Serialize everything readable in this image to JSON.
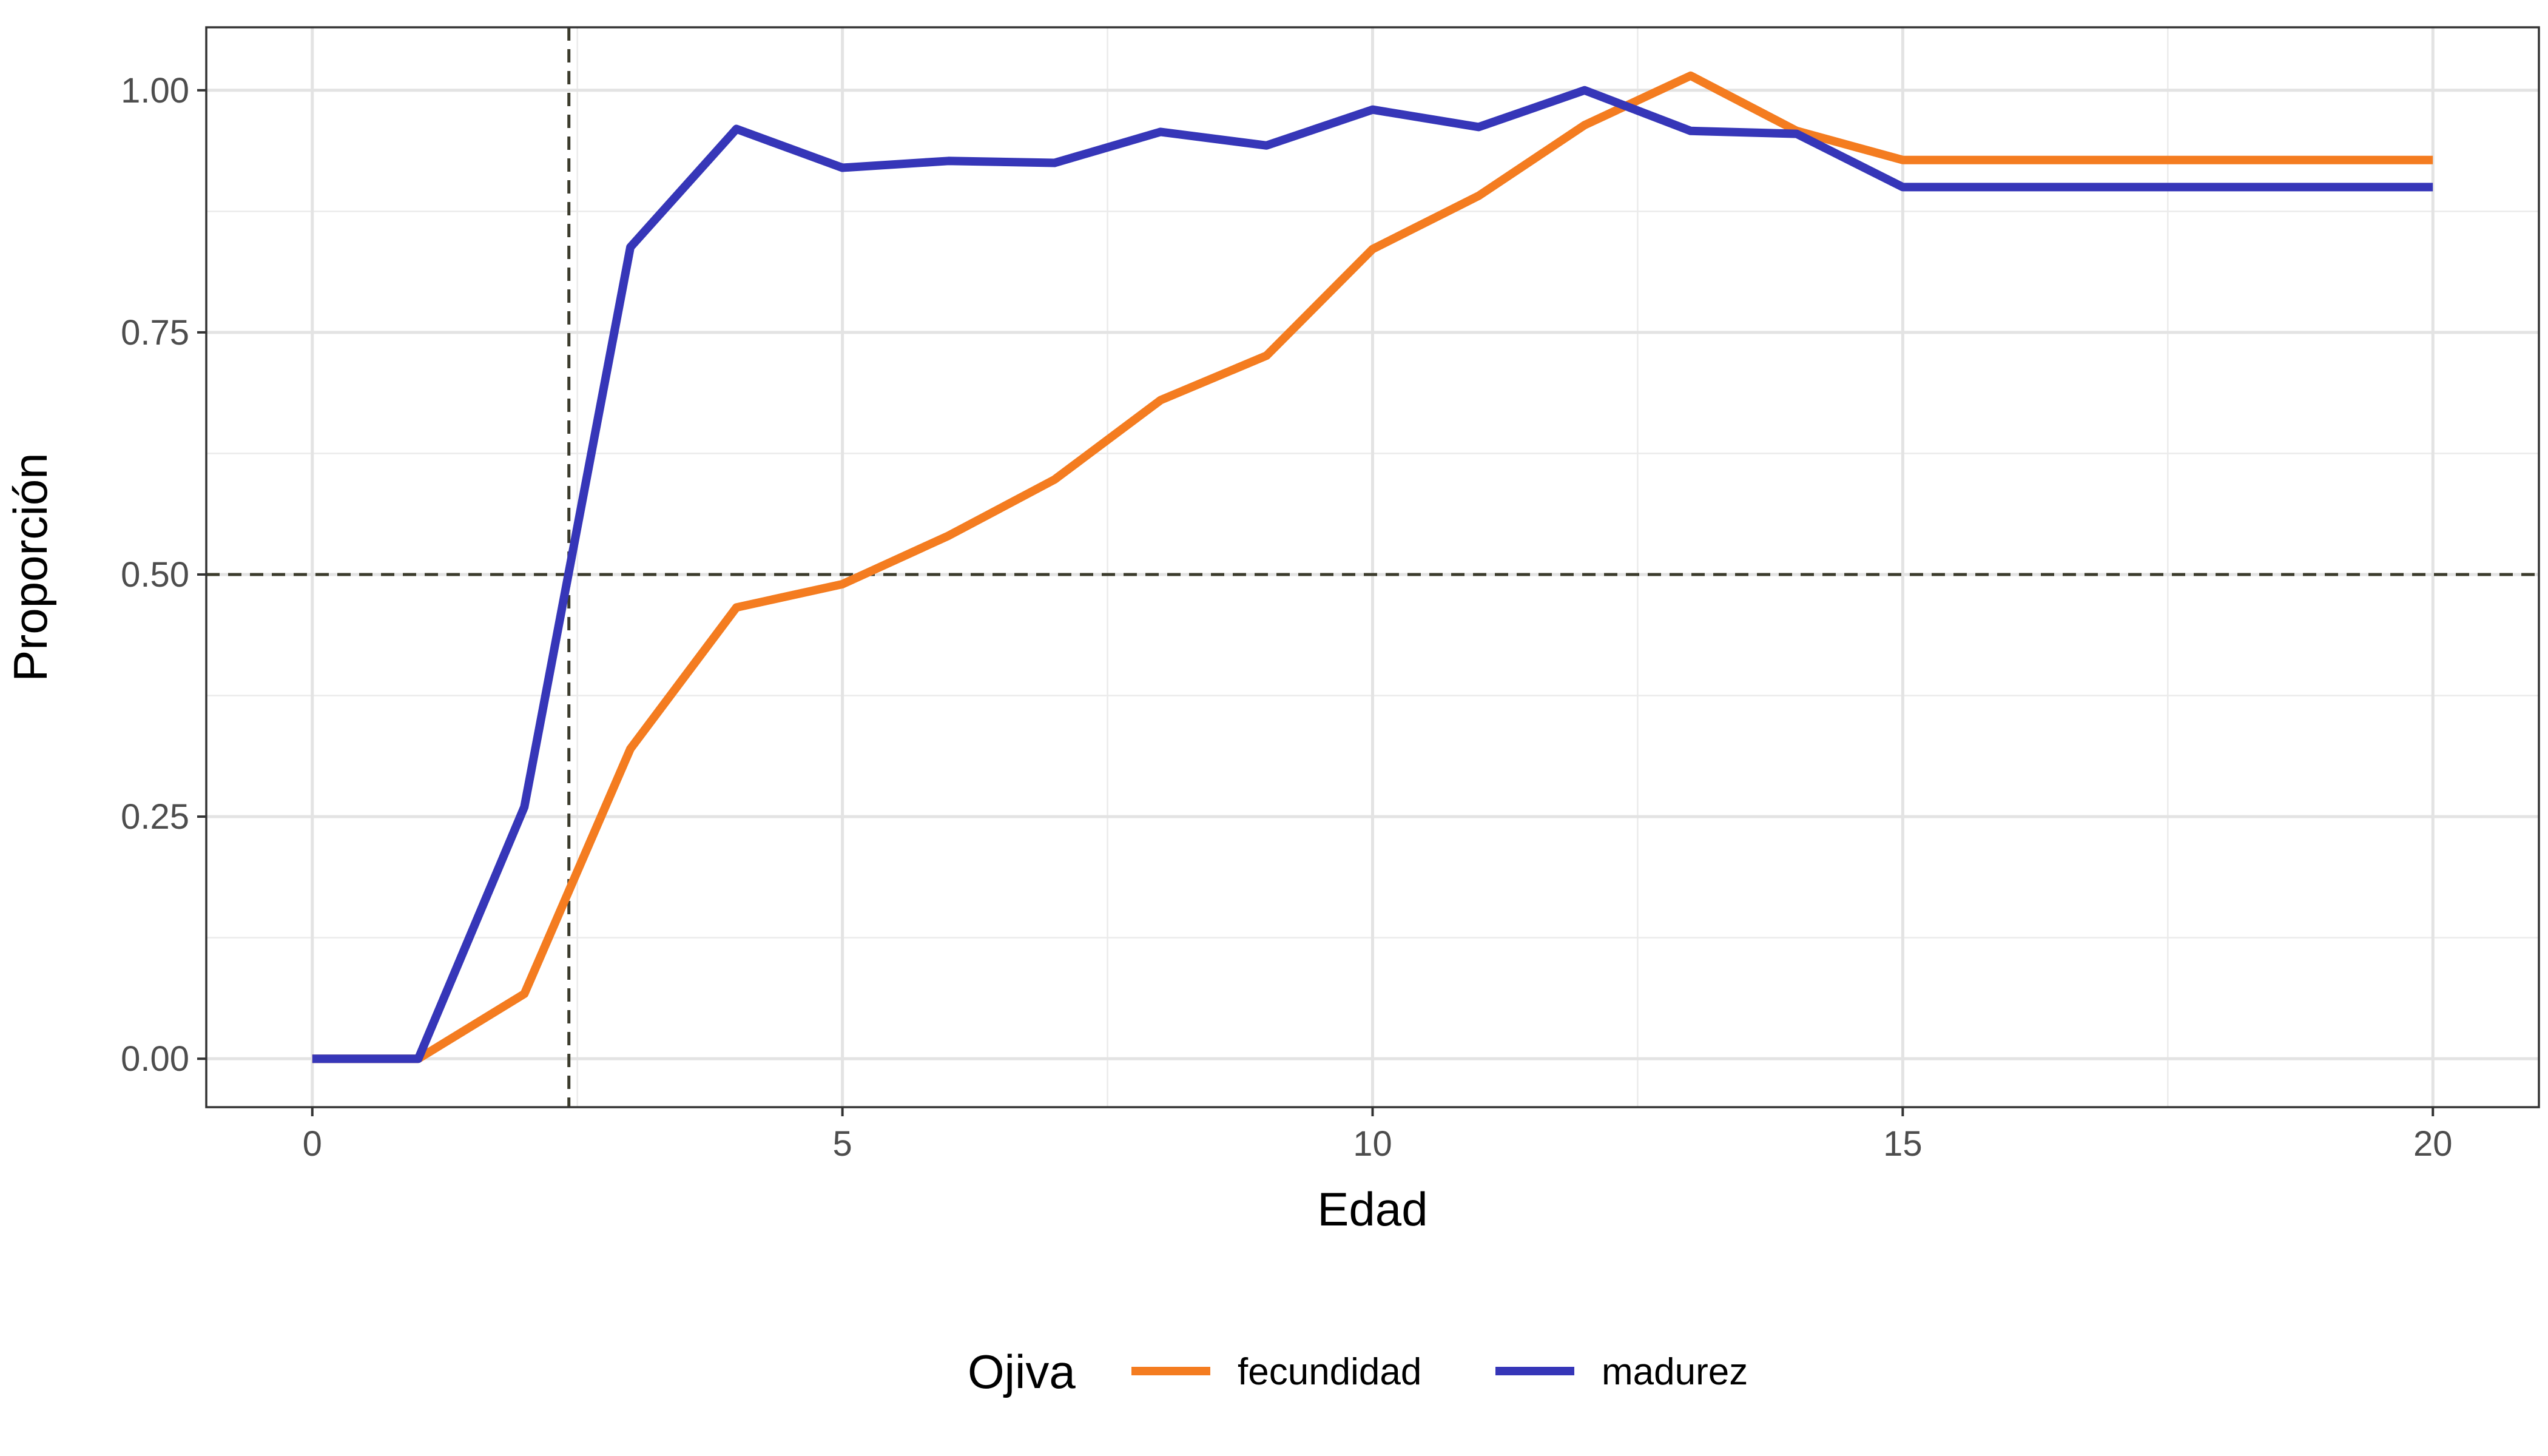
{
  "chart_data": {
    "type": "line",
    "xlabel": "Edad",
    "ylabel": "Proporción",
    "xlim": [
      -1,
      21
    ],
    "ylim": [
      -0.05,
      1.065
    ],
    "x_ticks": [
      0,
      5,
      10,
      15,
      20
    ],
    "x_tick_labels": [
      "0",
      "5",
      "10",
      "15",
      "20"
    ],
    "y_ticks": [
      0,
      0.25,
      0.5,
      0.75,
      1.0
    ],
    "y_tick_labels": [
      "0.00",
      "0.25",
      "0.50",
      "0.75",
      "1.00"
    ],
    "grid": true,
    "reference_lines": {
      "horizontal_y": 0.5,
      "vertical_x": 2.42,
      "color": "#3b3b2c"
    },
    "x": [
      0,
      1,
      2,
      3,
      4,
      5,
      6,
      7,
      8,
      9,
      10,
      11,
      12,
      13,
      14,
      15,
      16,
      17,
      18,
      19,
      20
    ],
    "series": [
      {
        "name": "fecundidad",
        "color": "#f47c20",
        "values": [
          0,
          0,
          0.067,
          0.32,
          0.466,
          0.49,
          0.54,
          0.598,
          0.68,
          0.726,
          0.836,
          0.891,
          0.964,
          1.015,
          0.958,
          0.928,
          0.928,
          0.928,
          0.928,
          0.928,
          0.928
        ]
      },
      {
        "name": "madurez",
        "color": "#3636b8",
        "values": [
          0,
          0,
          0.26,
          0.838,
          0.96,
          0.92,
          0.927,
          0.925,
          0.957,
          0.943,
          0.98,
          0.962,
          1.0,
          0.958,
          0.955,
          0.9,
          0.9,
          0.9,
          0.9,
          0.9,
          0.9
        ]
      }
    ],
    "legend": {
      "title": "Ojiva",
      "position": "bottom"
    }
  }
}
